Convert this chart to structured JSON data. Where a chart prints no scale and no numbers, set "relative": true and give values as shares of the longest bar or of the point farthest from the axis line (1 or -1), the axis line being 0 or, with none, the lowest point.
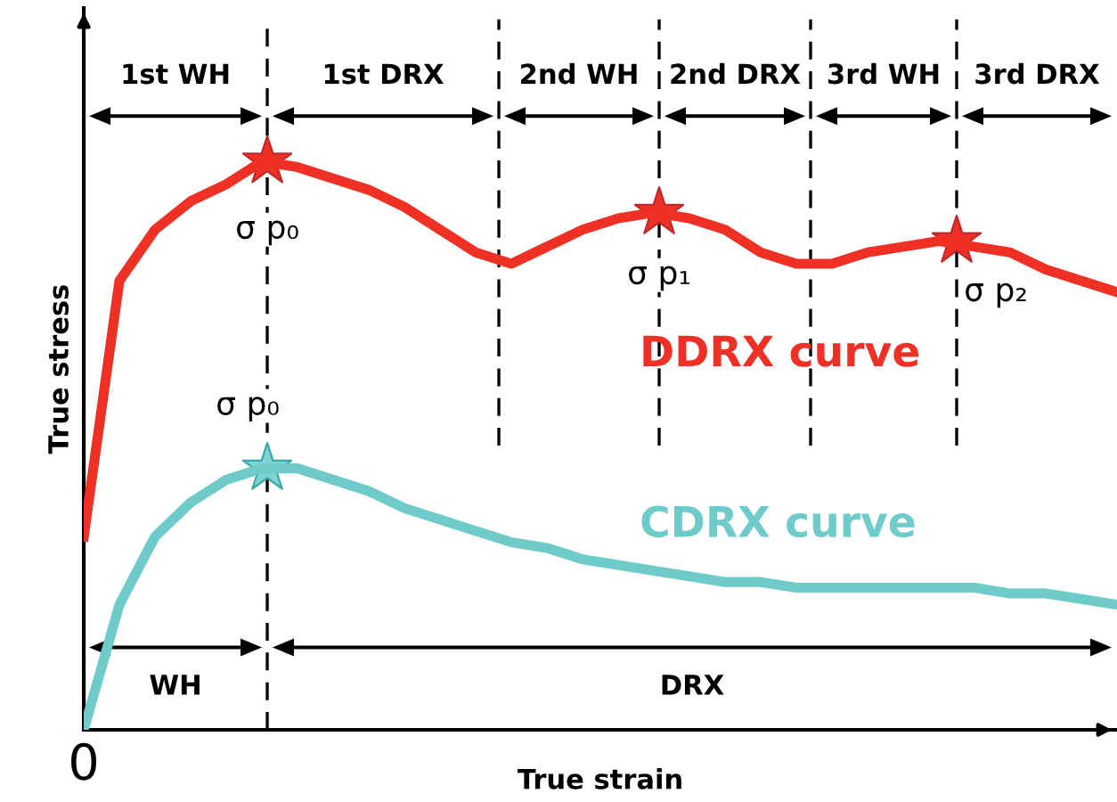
{
  "chart_data": {
    "type": "line",
    "relative": true,
    "xlabel": "True strain",
    "ylabel": "True stress",
    "categories": [
      null,
      null,
      null,
      null,
      null,
      null,
      null,
      null,
      null,
      null,
      null,
      null,
      null,
      null,
      null,
      null,
      null,
      null,
      null,
      null,
      null,
      null,
      null,
      null,
      null,
      null,
      null,
      null,
      null,
      null
    ],
    "series": [
      {
        "name": "DDRX curve",
        "color": "#ee3124",
        "values": [
          0.34,
          0.79,
          0.88,
          0.93,
          0.96,
          1,
          0.99,
          0.97,
          0.95,
          0.92,
          0.88,
          0.84,
          0.82,
          0.85,
          0.88,
          0.9,
          0.91,
          0.9,
          0.88,
          0.84,
          0.82,
          0.82,
          0.84,
          0.85,
          0.86,
          0.85,
          0.84,
          0.81,
          0.79,
          0.77
        ]
      },
      {
        "name": "CDRX curve",
        "color": "#6fcaca",
        "values": [
          0.0,
          0.22,
          0.34,
          0.4,
          0.44,
          0.46,
          0.46,
          0.44,
          0.42,
          0.39,
          0.37,
          0.35,
          0.33,
          0.32,
          0.3,
          0.29,
          0.28,
          0.27,
          0.26,
          0.26,
          0.25,
          0.25,
          0.25,
          0.25,
          0.25,
          0.25,
          0.24,
          0.24,
          0.23,
          0.22
        ]
      }
    ],
    "annotations": [
      "1st WH",
      "1st DRX",
      "2nd WH",
      "2nd DRX",
      "3rd WH",
      "3rd DRX",
      "WH",
      "DRX",
      "σ p₀",
      "σ p₁",
      "σ p₂",
      "σ p₀",
      "0"
    ],
    "legend": false
  }
}
